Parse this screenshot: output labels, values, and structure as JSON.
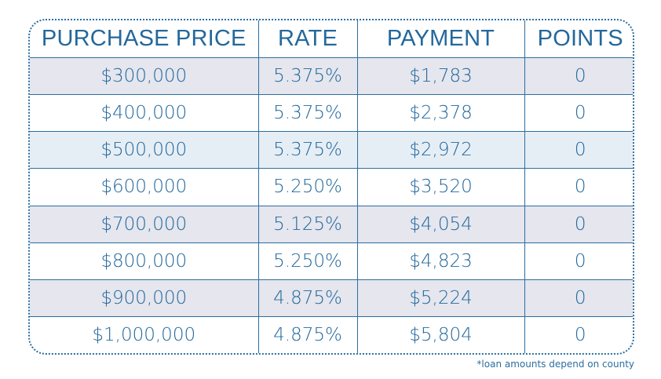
{
  "table": {
    "headers": [
      "PURCHASE PRICE",
      "RATE",
      "PAYMENT",
      "POINTS"
    ],
    "rows": [
      {
        "price": "$300,000",
        "rate": "5.375%",
        "payment": "$1,783",
        "points": "0",
        "shade": "gray"
      },
      {
        "price": "$400,000",
        "rate": "5.375%",
        "payment": "$2,378",
        "points": "0",
        "shade": "white"
      },
      {
        "price": "$500,000",
        "rate": "5.375%",
        "payment": "$2,972",
        "points": "0",
        "shade": "blue"
      },
      {
        "price": "$600,000",
        "rate": "5.250%",
        "payment": "$3,520",
        "points": "0",
        "shade": "white"
      },
      {
        "price": "$700,000",
        "rate": "5.125%",
        "payment": "$4,054",
        "points": "0",
        "shade": "gray"
      },
      {
        "price": "$800,000",
        "rate": "5.250%",
        "payment": "$4,823",
        "points": "0",
        "shade": "white"
      },
      {
        "price": "$900,000",
        "rate": "4.875%",
        "payment": "$5,224",
        "points": "0",
        "shade": "gray"
      },
      {
        "price": "$1,000,000",
        "rate": "4.875%",
        "payment": "$5,804",
        "points": "0",
        "shade": "white"
      }
    ]
  },
  "footnote": "*loan amounts depend on county",
  "colors": {
    "text": "#23689c",
    "border": "#2b6ea0",
    "row_gray": "#e5e6ee",
    "row_blue": "#e6eef5"
  }
}
